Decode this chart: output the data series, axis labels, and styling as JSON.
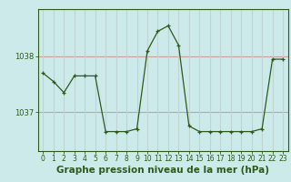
{
  "x": [
    0,
    1,
    2,
    3,
    4,
    5,
    6,
    7,
    8,
    9,
    10,
    11,
    12,
    13,
    14,
    15,
    16,
    17,
    18,
    19,
    20,
    21,
    22,
    23
  ],
  "y": [
    1037.7,
    1037.55,
    1037.35,
    1037.65,
    1037.65,
    1037.65,
    1036.65,
    1036.65,
    1036.65,
    1036.7,
    1038.1,
    1038.45,
    1038.55,
    1038.2,
    1036.75,
    1036.65,
    1036.65,
    1036.65,
    1036.65,
    1036.65,
    1036.65,
    1036.7,
    1037.95,
    1037.95
  ],
  "line_color": "#2d5a1b",
  "marker": "+",
  "marker_size": 3,
  "bg_color": "#cceaea",
  "grid_h_color": "#c9a0a0",
  "grid_v_color": "#c0d4d4",
  "xlabel": "Graphe pression niveau de la mer (hPa)",
  "xlabel_fontsize": 7.5,
  "ylabel_ticks": [
    1037,
    1038
  ],
  "ylim": [
    1036.3,
    1038.85
  ],
  "xlim": [
    -0.5,
    23.5
  ],
  "tick_fontsize": 6,
  "spine_color": "#2d5a1b"
}
